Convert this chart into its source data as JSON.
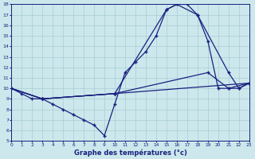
{
  "title": "Graphe des températures (°c)",
  "background_color": "#cce8ec",
  "grid_color": "#a8ccd4",
  "line_color": "#1a2080",
  "xlim": [
    0,
    23
  ],
  "ylim": [
    5,
    18
  ],
  "xticks": [
    0,
    1,
    2,
    3,
    4,
    5,
    6,
    7,
    8,
    9,
    10,
    11,
    12,
    13,
    14,
    15,
    16,
    17,
    18,
    19,
    20,
    21,
    22,
    23
  ],
  "yticks": [
    5,
    6,
    7,
    8,
    9,
    10,
    11,
    12,
    13,
    14,
    15,
    16,
    17,
    18
  ],
  "curve_main_x": [
    0,
    1,
    2,
    3,
    4,
    5,
    6,
    7,
    8,
    9,
    10,
    11,
    12,
    13,
    14,
    15,
    16,
    17,
    18,
    19,
    20,
    21,
    22,
    23
  ],
  "curve_main_y": [
    10,
    9.5,
    9,
    9,
    8.5,
    8,
    7.5,
    7,
    6.5,
    5.5,
    8.5,
    11.5,
    12.5,
    13.5,
    15,
    17.5,
    18,
    18,
    17,
    14.5,
    10,
    10,
    10,
    10.5
  ],
  "curve2_x": [
    0,
    3,
    10,
    15,
    16,
    18,
    21,
    22,
    23
  ],
  "curve2_y": [
    10,
    9,
    9.5,
    17.5,
    18,
    17,
    11.5,
    10,
    10.5
  ],
  "curve3_x": [
    0,
    3,
    10,
    19,
    21,
    23
  ],
  "curve3_y": [
    10,
    9,
    9.5,
    11.5,
    10,
    10.5
  ],
  "curve4_x": [
    0,
    3,
    10,
    23
  ],
  "curve4_y": [
    10,
    9,
    9.5,
    10.5
  ]
}
